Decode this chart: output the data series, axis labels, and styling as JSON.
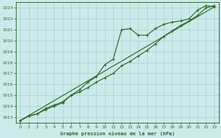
{
  "title": "Graphe pression niveau de la mer (hPa)",
  "bg_color": "#cceaea",
  "grid_color": "#aacccc",
  "line_color": "#2d6a2d",
  "x_ticks": [
    0,
    1,
    2,
    3,
    4,
    5,
    6,
    7,
    8,
    9,
    10,
    11,
    12,
    13,
    14,
    15,
    16,
    17,
    18,
    19,
    20,
    21,
    22,
    23
  ],
  "y_min": 1012.5,
  "y_max": 1023.5,
  "y_ticks": [
    1013,
    1014,
    1015,
    1016,
    1017,
    1018,
    1019,
    1020,
    1021,
    1022,
    1023
  ],
  "series_wiggly_x": [
    0,
    1,
    2,
    3,
    4,
    5,
    6,
    7,
    8,
    9,
    10,
    11,
    12,
    13,
    14,
    15,
    16,
    17,
    18,
    19,
    20,
    21,
    22,
    23
  ],
  "series_wiggly_y": [
    1012.7,
    1013.1,
    1013.3,
    1013.8,
    1014.1,
    1014.4,
    1015.0,
    1015.5,
    1016.2,
    1016.7,
    1017.8,
    1018.3,
    1021.0,
    1021.1,
    1020.5,
    1020.5,
    1021.1,
    1021.5,
    1021.7,
    1021.8,
    1022.0,
    1022.8,
    1023.2,
    1023.1
  ],
  "series_smooth_x": [
    0,
    1,
    2,
    3,
    4,
    5,
    6,
    7,
    8,
    9,
    10,
    11,
    12,
    13,
    14,
    15,
    16,
    17,
    18,
    19,
    20,
    21,
    22,
    23
  ],
  "series_smooth_y": [
    1012.7,
    1013.1,
    1013.3,
    1013.7,
    1014.0,
    1014.3,
    1015.0,
    1015.3,
    1015.7,
    1016.2,
    1016.6,
    1017.0,
    1017.7,
    1018.1,
    1018.6,
    1019.1,
    1019.7,
    1020.4,
    1020.9,
    1021.4,
    1021.8,
    1022.3,
    1023.0,
    1023.2
  ],
  "series_trend_x": [
    0,
    23
  ],
  "series_trend_y": [
    1012.7,
    1023.1
  ]
}
